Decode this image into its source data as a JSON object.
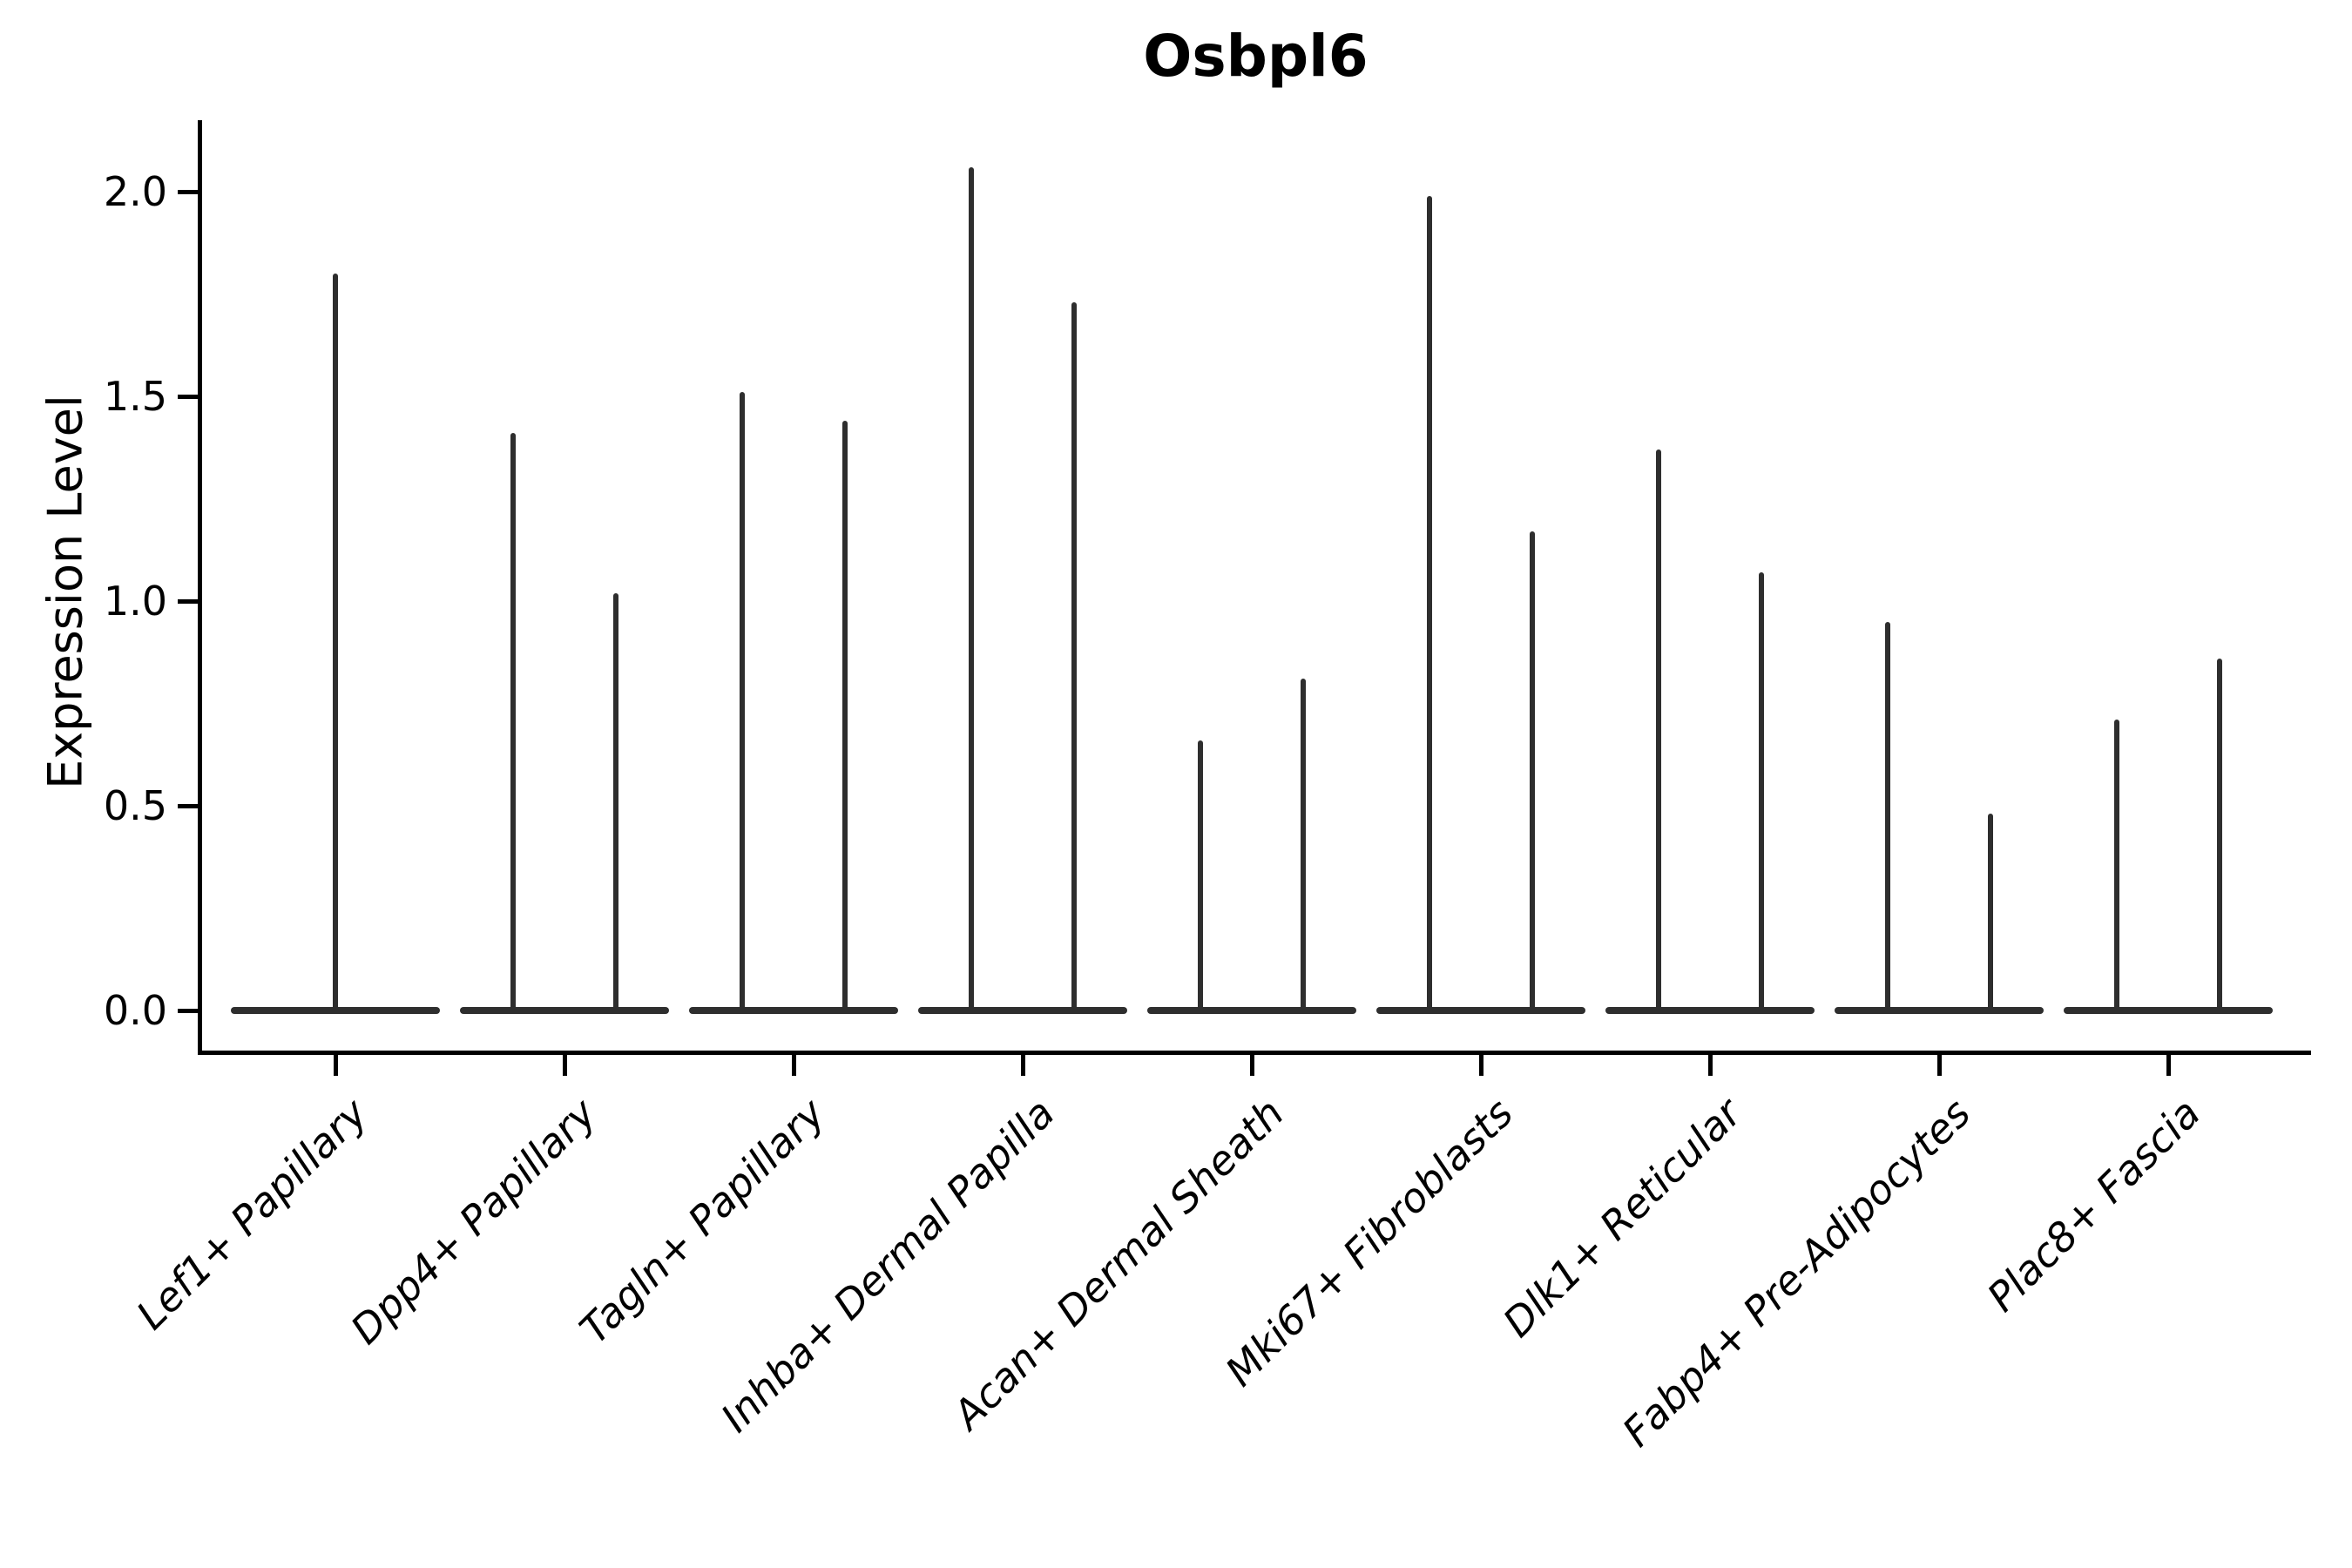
{
  "title": "Osbpl6",
  "chart_data": {
    "type": "violin",
    "title": "Osbpl6",
    "ylabel": "Expression Level",
    "xlabel": "",
    "yticks": [
      "0.0",
      "0.5",
      "1.0",
      "1.5",
      "2.0"
    ],
    "ylim": [
      -0.1,
      2.17
    ],
    "grid": false,
    "legend": "none",
    "x_tick_label_rotation_deg": 45,
    "categories": [
      "Lef1+ Papillary",
      "Dpp4+ Papillary",
      "Tagln+ Papillary",
      "Inhba+ Dermal Papilla",
      "Acan+ Dermal Sheath",
      "Mki67+ Fibroblasts",
      "Dlk1+ Reticular",
      "Fabp4+ Pre-Adipocytes",
      "Plac8+ Fascia"
    ],
    "series": [
      {
        "category": "Lef1+ Papillary",
        "violin_maxima": [
          1.8
        ]
      },
      {
        "category": "Dpp4+ Papillary",
        "violin_maxima": [
          1.41,
          1.02
        ]
      },
      {
        "category": "Tagln+ Papillary",
        "violin_maxima": [
          1.51,
          1.44
        ]
      },
      {
        "category": "Inhba+ Dermal Papilla",
        "violin_maxima": [
          2.06,
          1.73
        ]
      },
      {
        "category": "Acan+ Dermal Sheath",
        "violin_maxima": [
          0.66,
          0.81
        ]
      },
      {
        "category": "Mki67+ Fibroblasts",
        "violin_maxima": [
          1.99,
          1.17
        ]
      },
      {
        "category": "Dlk1+ Reticular",
        "violin_maxima": [
          1.37,
          1.07
        ]
      },
      {
        "category": "Fabp4+ Pre-Adipocytes",
        "violin_maxima": [
          0.95,
          0.48
        ]
      },
      {
        "category": "Plac8+ Fascia",
        "violin_maxima": [
          0.71,
          0.86
        ]
      }
    ],
    "baseline_value": 0.0,
    "colors": {
      "violin_line": "#2e2e2e",
      "axis": "#000000",
      "text": "#000000",
      "background": "#ffffff"
    }
  }
}
